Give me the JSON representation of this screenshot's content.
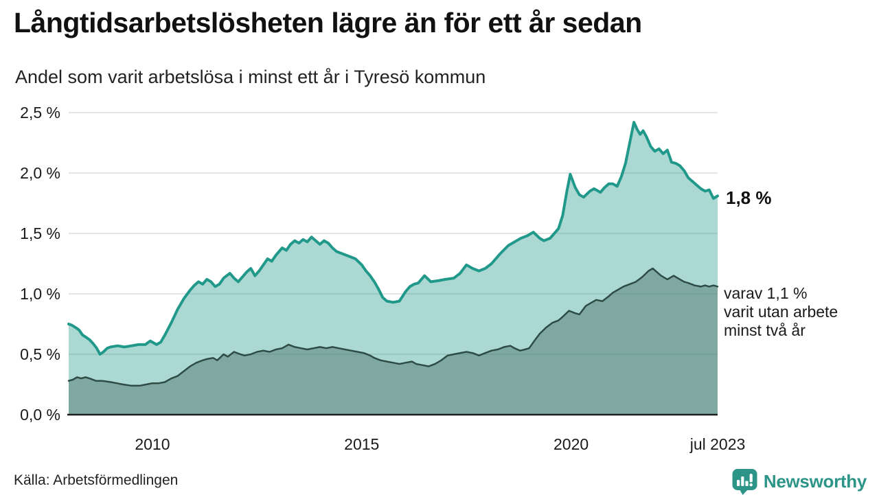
{
  "header": {
    "title": "Långtidsarbetslösheten lägre än för ett år sedan",
    "subtitle": "Andel som varit arbetslösa i minst ett år i Tyresö kommun"
  },
  "annotations": {
    "latest_total": "1,8 %",
    "two_year_lines": [
      "varav 1,1 %",
      "varit utan arbete",
      "minst två år"
    ]
  },
  "source": {
    "label": "Källa: Arbetsförmedlingen"
  },
  "branding": {
    "name": "Newsworthy",
    "color": "#2d9488",
    "icon": "newsworthy-bars-bubble-icon"
  },
  "colors": {
    "line_one_year": "#21998a",
    "fill_one_year": "rgba(33,153,138,0.38)",
    "line_two_year": "#2e4b46",
    "fill_two_year": "rgba(47,79,74,0.35)",
    "gridline": "#dcdcdc",
    "axis": "#1f1f1f",
    "text": "#1a1a1a"
  },
  "chart_data": {
    "type": "area",
    "title": "Långtidsarbetslösheten lägre än för ett år sedan",
    "subtitle": "Andel som varit arbetslösa i minst ett år i Tyresö kommun",
    "unit": "%",
    "xlim": [
      2008.0,
      2023.5
    ],
    "ylim": [
      0,
      2.5
    ],
    "grid": true,
    "x_ticks": [
      {
        "x": 2010,
        "label": "2010"
      },
      {
        "x": 2015,
        "label": "2015"
      },
      {
        "x": 2020,
        "label": "2020"
      },
      {
        "x": 2023.5,
        "label": "jul 2023"
      }
    ],
    "y_ticks": [
      {
        "v": 0.0,
        "label": "0,0 %"
      },
      {
        "v": 0.5,
        "label": "0,5 %"
      },
      {
        "v": 1.0,
        "label": "1,0 %"
      },
      {
        "v": 1.5,
        "label": "1,5 %"
      },
      {
        "v": 2.0,
        "label": "2,0 %"
      },
      {
        "v": 2.5,
        "label": "2,5 %"
      }
    ],
    "series": [
      {
        "name": "Arbetslösa minst ett år",
        "latest_value": 1.8,
        "color": "#21998a",
        "fill": "rgba(33,153,138,0.38)",
        "stroke_width": 4,
        "points": [
          [
            2008.0,
            0.75
          ],
          [
            2008.08,
            0.74
          ],
          [
            2008.17,
            0.72
          ],
          [
            2008.25,
            0.7
          ],
          [
            2008.33,
            0.66
          ],
          [
            2008.42,
            0.64
          ],
          [
            2008.5,
            0.62
          ],
          [
            2008.58,
            0.59
          ],
          [
            2008.67,
            0.55
          ],
          [
            2008.75,
            0.5
          ],
          [
            2008.83,
            0.52
          ],
          [
            2008.92,
            0.55
          ],
          [
            2009.0,
            0.56
          ],
          [
            2009.17,
            0.57
          ],
          [
            2009.33,
            0.56
          ],
          [
            2009.5,
            0.57
          ],
          [
            2009.67,
            0.58
          ],
          [
            2009.83,
            0.58
          ],
          [
            2009.95,
            0.61
          ],
          [
            2010.1,
            0.58
          ],
          [
            2010.2,
            0.6
          ],
          [
            2010.3,
            0.66
          ],
          [
            2010.45,
            0.76
          ],
          [
            2010.6,
            0.87
          ],
          [
            2010.75,
            0.96
          ],
          [
            2010.9,
            1.03
          ],
          [
            2011.0,
            1.07
          ],
          [
            2011.1,
            1.1
          ],
          [
            2011.2,
            1.08
          ],
          [
            2011.3,
            1.12
          ],
          [
            2011.4,
            1.1
          ],
          [
            2011.5,
            1.06
          ],
          [
            2011.6,
            1.08
          ],
          [
            2011.7,
            1.13
          ],
          [
            2011.85,
            1.17
          ],
          [
            2011.95,
            1.13
          ],
          [
            2012.05,
            1.1
          ],
          [
            2012.15,
            1.14
          ],
          [
            2012.25,
            1.18
          ],
          [
            2012.35,
            1.21
          ],
          [
            2012.45,
            1.15
          ],
          [
            2012.55,
            1.19
          ],
          [
            2012.65,
            1.24
          ],
          [
            2012.75,
            1.29
          ],
          [
            2012.85,
            1.27
          ],
          [
            2012.95,
            1.32
          ],
          [
            2013.1,
            1.38
          ],
          [
            2013.2,
            1.36
          ],
          [
            2013.3,
            1.41
          ],
          [
            2013.4,
            1.44
          ],
          [
            2013.5,
            1.42
          ],
          [
            2013.6,
            1.45
          ],
          [
            2013.7,
            1.43
          ],
          [
            2013.8,
            1.47
          ],
          [
            2013.9,
            1.44
          ],
          [
            2014.0,
            1.41
          ],
          [
            2014.1,
            1.44
          ],
          [
            2014.2,
            1.42
          ],
          [
            2014.3,
            1.38
          ],
          [
            2014.4,
            1.35
          ],
          [
            2014.55,
            1.33
          ],
          [
            2014.7,
            1.31
          ],
          [
            2014.85,
            1.29
          ],
          [
            2015.0,
            1.24
          ],
          [
            2015.1,
            1.19
          ],
          [
            2015.2,
            1.15
          ],
          [
            2015.3,
            1.1
          ],
          [
            2015.4,
            1.04
          ],
          [
            2015.5,
            0.97
          ],
          [
            2015.6,
            0.94
          ],
          [
            2015.75,
            0.93
          ],
          [
            2015.9,
            0.94
          ],
          [
            2016.05,
            1.02
          ],
          [
            2016.15,
            1.06
          ],
          [
            2016.25,
            1.08
          ],
          [
            2016.35,
            1.09
          ],
          [
            2016.5,
            1.15
          ],
          [
            2016.65,
            1.1
          ],
          [
            2016.85,
            1.11
          ],
          [
            2017.0,
            1.12
          ],
          [
            2017.2,
            1.13
          ],
          [
            2017.35,
            1.17
          ],
          [
            2017.5,
            1.24
          ],
          [
            2017.65,
            1.21
          ],
          [
            2017.8,
            1.19
          ],
          [
            2017.95,
            1.21
          ],
          [
            2018.1,
            1.25
          ],
          [
            2018.3,
            1.33
          ],
          [
            2018.5,
            1.4
          ],
          [
            2018.65,
            1.43
          ],
          [
            2018.8,
            1.46
          ],
          [
            2018.95,
            1.48
          ],
          [
            2019.1,
            1.51
          ],
          [
            2019.25,
            1.46
          ],
          [
            2019.35,
            1.44
          ],
          [
            2019.5,
            1.46
          ],
          [
            2019.6,
            1.5
          ],
          [
            2019.7,
            1.54
          ],
          [
            2019.8,
            1.65
          ],
          [
            2019.9,
            1.85
          ],
          [
            2019.98,
            1.99
          ],
          [
            2020.1,
            1.88
          ],
          [
            2020.2,
            1.82
          ],
          [
            2020.3,
            1.8
          ],
          [
            2020.45,
            1.85
          ],
          [
            2020.55,
            1.87
          ],
          [
            2020.7,
            1.84
          ],
          [
            2020.8,
            1.88
          ],
          [
            2020.9,
            1.91
          ],
          [
            2021.0,
            1.91
          ],
          [
            2021.1,
            1.89
          ],
          [
            2021.2,
            1.97
          ],
          [
            2021.3,
            2.08
          ],
          [
            2021.4,
            2.25
          ],
          [
            2021.5,
            2.42
          ],
          [
            2021.58,
            2.36
          ],
          [
            2021.65,
            2.32
          ],
          [
            2021.72,
            2.35
          ],
          [
            2021.8,
            2.3
          ],
          [
            2021.9,
            2.22
          ],
          [
            2022.0,
            2.18
          ],
          [
            2022.1,
            2.2
          ],
          [
            2022.2,
            2.16
          ],
          [
            2022.3,
            2.19
          ],
          [
            2022.4,
            2.09
          ],
          [
            2022.5,
            2.08
          ],
          [
            2022.6,
            2.06
          ],
          [
            2022.7,
            2.02
          ],
          [
            2022.8,
            1.96
          ],
          [
            2022.9,
            1.93
          ],
          [
            2023.0,
            1.9
          ],
          [
            2023.1,
            1.87
          ],
          [
            2023.2,
            1.85
          ],
          [
            2023.3,
            1.86
          ],
          [
            2023.4,
            1.79
          ],
          [
            2023.5,
            1.81
          ]
        ]
      },
      {
        "name": "varav utan arbete minst två år",
        "latest_value": 1.1,
        "color": "#2e4b46",
        "fill": "rgba(47,79,74,0.35)",
        "stroke_width": 2.5,
        "points": [
          [
            2008.0,
            0.28
          ],
          [
            2008.1,
            0.29
          ],
          [
            2008.2,
            0.31
          ],
          [
            2008.3,
            0.3
          ],
          [
            2008.4,
            0.31
          ],
          [
            2008.5,
            0.3
          ],
          [
            2008.65,
            0.28
          ],
          [
            2008.8,
            0.28
          ],
          [
            2009.0,
            0.27
          ],
          [
            2009.15,
            0.26
          ],
          [
            2009.3,
            0.25
          ],
          [
            2009.5,
            0.24
          ],
          [
            2009.7,
            0.24
          ],
          [
            2009.85,
            0.25
          ],
          [
            2010.0,
            0.26
          ],
          [
            2010.15,
            0.26
          ],
          [
            2010.3,
            0.27
          ],
          [
            2010.45,
            0.3
          ],
          [
            2010.6,
            0.32
          ],
          [
            2010.75,
            0.36
          ],
          [
            2010.9,
            0.4
          ],
          [
            2011.05,
            0.43
          ],
          [
            2011.2,
            0.45
          ],
          [
            2011.3,
            0.46
          ],
          [
            2011.45,
            0.47
          ],
          [
            2011.55,
            0.45
          ],
          [
            2011.7,
            0.5
          ],
          [
            2011.8,
            0.48
          ],
          [
            2011.95,
            0.52
          ],
          [
            2012.1,
            0.5
          ],
          [
            2012.2,
            0.49
          ],
          [
            2012.35,
            0.5
          ],
          [
            2012.5,
            0.52
          ],
          [
            2012.65,
            0.53
          ],
          [
            2012.8,
            0.52
          ],
          [
            2012.95,
            0.54
          ],
          [
            2013.1,
            0.55
          ],
          [
            2013.25,
            0.58
          ],
          [
            2013.4,
            0.56
          ],
          [
            2013.55,
            0.55
          ],
          [
            2013.7,
            0.54
          ],
          [
            2013.85,
            0.55
          ],
          [
            2014.0,
            0.56
          ],
          [
            2014.15,
            0.55
          ],
          [
            2014.3,
            0.56
          ],
          [
            2014.45,
            0.55
          ],
          [
            2014.6,
            0.54
          ],
          [
            2014.75,
            0.53
          ],
          [
            2014.9,
            0.52
          ],
          [
            2015.05,
            0.51
          ],
          [
            2015.2,
            0.49
          ],
          [
            2015.3,
            0.47
          ],
          [
            2015.45,
            0.45
          ],
          [
            2015.6,
            0.44
          ],
          [
            2015.75,
            0.43
          ],
          [
            2015.9,
            0.42
          ],
          [
            2016.05,
            0.43
          ],
          [
            2016.2,
            0.44
          ],
          [
            2016.3,
            0.42
          ],
          [
            2016.45,
            0.41
          ],
          [
            2016.6,
            0.4
          ],
          [
            2016.75,
            0.42
          ],
          [
            2016.9,
            0.45
          ],
          [
            2017.05,
            0.49
          ],
          [
            2017.2,
            0.5
          ],
          [
            2017.35,
            0.51
          ],
          [
            2017.5,
            0.52
          ],
          [
            2017.65,
            0.51
          ],
          [
            2017.8,
            0.49
          ],
          [
            2017.95,
            0.51
          ],
          [
            2018.1,
            0.53
          ],
          [
            2018.25,
            0.54
          ],
          [
            2018.4,
            0.56
          ],
          [
            2018.55,
            0.57
          ],
          [
            2018.65,
            0.55
          ],
          [
            2018.78,
            0.53
          ],
          [
            2018.9,
            0.54
          ],
          [
            2019.0,
            0.55
          ],
          [
            2019.1,
            0.6
          ],
          [
            2019.25,
            0.67
          ],
          [
            2019.4,
            0.72
          ],
          [
            2019.55,
            0.76
          ],
          [
            2019.7,
            0.78
          ],
          [
            2019.8,
            0.81
          ],
          [
            2019.95,
            0.86
          ],
          [
            2020.1,
            0.84
          ],
          [
            2020.2,
            0.83
          ],
          [
            2020.35,
            0.9
          ],
          [
            2020.5,
            0.93
          ],
          [
            2020.6,
            0.95
          ],
          [
            2020.75,
            0.94
          ],
          [
            2020.9,
            0.98
          ],
          [
            2021.0,
            1.01
          ],
          [
            2021.1,
            1.03
          ],
          [
            2021.25,
            1.06
          ],
          [
            2021.4,
            1.08
          ],
          [
            2021.55,
            1.1
          ],
          [
            2021.7,
            1.14
          ],
          [
            2021.85,
            1.19
          ],
          [
            2021.95,
            1.21
          ],
          [
            2022.05,
            1.18
          ],
          [
            2022.15,
            1.15
          ],
          [
            2022.3,
            1.12
          ],
          [
            2022.45,
            1.15
          ],
          [
            2022.6,
            1.12
          ],
          [
            2022.7,
            1.1
          ],
          [
            2022.8,
            1.09
          ],
          [
            2022.95,
            1.07
          ],
          [
            2023.1,
            1.06
          ],
          [
            2023.2,
            1.07
          ],
          [
            2023.3,
            1.06
          ],
          [
            2023.4,
            1.07
          ],
          [
            2023.5,
            1.06
          ]
        ]
      }
    ]
  }
}
